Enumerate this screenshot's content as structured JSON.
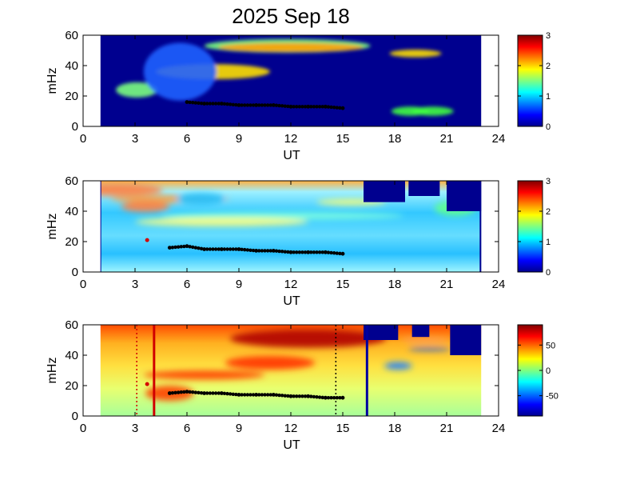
{
  "page": {
    "title": "2025 Sep 18"
  },
  "colors": {
    "background": "#ffffff",
    "jet_low": "#00008f",
    "jet_high": "#800000",
    "ridge_marker": "#000000",
    "red_marker": "#d40000",
    "red_line": "#d00000",
    "blue_line": "#0000a0"
  },
  "chart_data": [
    {
      "type": "heatmap",
      "title": "2025 Sep 18",
      "xlabel": "UT",
      "ylabel": "mHz",
      "xlim": [
        0,
        24
      ],
      "ylim": [
        0,
        60
      ],
      "xticks": [
        "0",
        "3",
        "6",
        "9",
        "12",
        "15",
        "18",
        "21",
        "24"
      ],
      "yticks": [
        "0",
        "20",
        "40",
        "60"
      ],
      "data_extent_ut": [
        1,
        23
      ],
      "colorbar": {
        "range": [
          0,
          3
        ],
        "ticks": [
          "0",
          "1",
          "2",
          "3"
        ],
        "colormap": "jet"
      },
      "ridge": {
        "x": [
          6,
          7,
          8,
          9,
          10,
          11,
          12,
          13,
          14,
          15
        ],
        "y": [
          16,
          15,
          15,
          14,
          14,
          14,
          13,
          13,
          13,
          12
        ]
      }
    },
    {
      "type": "heatmap",
      "xlabel": "UT",
      "ylabel": "mHz",
      "xlim": [
        0,
        24
      ],
      "ylim": [
        0,
        60
      ],
      "xticks": [
        "0",
        "3",
        "6",
        "9",
        "12",
        "15",
        "18",
        "21",
        "24"
      ],
      "yticks": [
        "0",
        "20",
        "40",
        "60"
      ],
      "data_extent_ut": [
        1,
        23
      ],
      "colorbar": {
        "range": [
          0,
          3
        ],
        "ticks": [
          "0",
          "1",
          "2",
          "3"
        ],
        "colormap": "jet"
      },
      "ridge": {
        "x": [
          5,
          6,
          7,
          8,
          9,
          10,
          11,
          12,
          13,
          14,
          15
        ],
        "y": [
          16,
          17,
          15,
          15,
          15,
          14,
          14,
          13,
          13,
          13,
          12
        ]
      },
      "marker": {
        "x": 3.7,
        "y": 21
      }
    },
    {
      "type": "heatmap",
      "xlabel": "UT",
      "ylabel": "mHz",
      "xlim": [
        0,
        24
      ],
      "ylim": [
        0,
        60
      ],
      "xticks": [
        "0",
        "3",
        "6",
        "9",
        "12",
        "15",
        "18",
        "21",
        "24"
      ],
      "yticks": [
        "0",
        "20",
        "40",
        "60"
      ],
      "data_extent_ut": [
        1,
        23
      ],
      "colorbar": {
        "range": [
          -90,
          90
        ],
        "ticks": [
          "-50",
          "0",
          "50"
        ],
        "colormap": "jet"
      },
      "ridge": {
        "x": [
          5,
          6,
          7,
          8,
          9,
          10,
          11,
          12,
          13,
          14,
          15
        ],
        "y": [
          15,
          16,
          15,
          15,
          14,
          14,
          14,
          13,
          13,
          12,
          12
        ]
      },
      "marker": {
        "x": 3.7,
        "y": 21
      },
      "vlines": [
        {
          "x": 3.1,
          "style": "dotted",
          "color": "#d00000"
        },
        {
          "x": 4.1,
          "style": "solid",
          "color": "#d00000"
        },
        {
          "x": 14.6,
          "style": "dotted",
          "color": "#000000"
        },
        {
          "x": 16.4,
          "style": "solid",
          "color": "#0000a0"
        }
      ]
    }
  ]
}
